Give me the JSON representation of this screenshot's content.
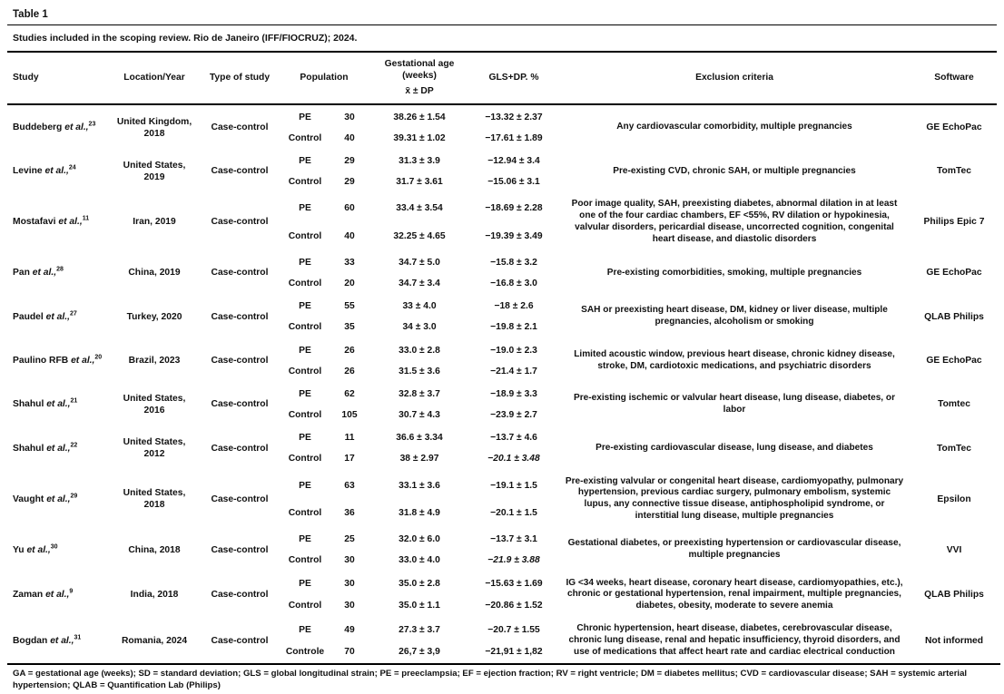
{
  "page": {
    "table_label": "Table 1",
    "subtitle": "Studies included in the scoping review. Rio de Janeiro (IFF/FIOCRUZ); 2024.",
    "footnote": "GA = gestational age (weeks); SD = standard deviation; GLS = global longitudinal strain; PE = preeclampsia; EF = ejection fraction; RV = right ventricle; DM = diabetes mellitus; CVD = cardiovascular disease; SAH = systemic arterial hypertension; QLAB = Quantification Lab (Philips)"
  },
  "table": {
    "headers": {
      "study": "Study",
      "location": "Location/Year",
      "type": "Type of study",
      "population": "Population",
      "ga_line1": "Gestational age (weeks)",
      "ga_line2": "x̄  ± DP",
      "gls": "GLS+DP. %",
      "exclusion": "Exclusion criteria",
      "software": "Software"
    },
    "rows": [
      {
        "name": "Buddeberg",
        "etal": "et al.,",
        "ref": "23",
        "location": "United Kingdom, 2018",
        "type": "Case-control",
        "groups": [
          {
            "group": "PE",
            "n": "30",
            "ga": "38.26 ± 1.54",
            "gls": "−13.32 ± 2.37"
          },
          {
            "group": "Control",
            "n": "40",
            "ga": "39.31 ± 1.02",
            "gls": "−17.61 ± 1.89"
          }
        ],
        "exclusion": "Any cardiovascular comorbidity, multiple pregnancies",
        "software": "GE EchoPac"
      },
      {
        "name": "Levine",
        "etal": "et al.,",
        "ref": "24",
        "location": "United States, 2019",
        "type": "Case-control",
        "groups": [
          {
            "group": "PE",
            "n": "29",
            "ga": "31.3 ± 3.9",
            "gls": "−12.94 ± 3.4"
          },
          {
            "group": "Control",
            "n": "29",
            "ga": "31.7 ± 3.61",
            "gls": "−15.06 ± 3.1"
          }
        ],
        "exclusion": "Pre-existing CVD, chronic SAH, or multiple pregnancies",
        "software": "TomTec"
      },
      {
        "name": "Mostafavi",
        "etal": "et al.,",
        "ref": "11",
        "location": "Iran, 2019",
        "type": "Case-control",
        "groups": [
          {
            "group": "PE",
            "n": "60",
            "ga": "33.4 ± 3.54",
            "gls": "−18.69 ± 2.28"
          },
          {
            "group": "Control",
            "n": "40",
            "ga": "32.25 ± 4.65",
            "gls": "−19.39 ± 3.49"
          }
        ],
        "exclusion": "Poor image quality, SAH, preexisting diabetes, abnormal dilation in at least one of the four cardiac chambers, EF <55%, RV dilation or hypokinesia, valvular disorders, pericardial disease, uncorrected cognition, congenital heart disease, and diastolic disorders",
        "software": "Philips Epic 7"
      },
      {
        "name": "Pan",
        "etal": "et al.,",
        "ref": "28",
        "location": "China, 2019",
        "type": "Case-control",
        "groups": [
          {
            "group": "PE",
            "n": "33",
            "ga": "34.7 ± 5.0",
            "gls": "−15.8 ± 3.2"
          },
          {
            "group": "Control",
            "n": "20",
            "ga": "34.7 ± 3.4",
            "gls": "−16.8 ± 3.0"
          }
        ],
        "exclusion": "Pre-existing comorbidities, smoking, multiple pregnancies",
        "software": "GE EchoPac"
      },
      {
        "name": "Paudel",
        "etal": "et al.,",
        "ref": "27",
        "location": "Turkey, 2020",
        "type": "Case-control",
        "groups": [
          {
            "group": "PE",
            "n": "55",
            "ga": "33 ± 4.0",
            "gls": "−18 ± 2.6"
          },
          {
            "group": "Control",
            "n": "35",
            "ga": "34 ± 3.0",
            "gls": "−19.8 ± 2.1"
          }
        ],
        "exclusion": "SAH or preexisting heart disease, DM, kidney or liver disease, multiple pregnancies, alcoholism or smoking",
        "software": "QLAB Philips"
      },
      {
        "name": "Paulino RFB",
        "etal": "et al.,",
        "ref": "20",
        "location": "Brazil, 2023",
        "type": "Case-control",
        "groups": [
          {
            "group": "PE",
            "n": "26",
            "ga": "33.0 ± 2.8",
            "gls": "−19.0 ± 2.3"
          },
          {
            "group": "Control",
            "n": "26",
            "ga": "31.5 ± 3.6",
            "gls": "−21.4 ± 1.7"
          }
        ],
        "exclusion": "Limited acoustic window, previous heart disease, chronic kidney disease, stroke, DM, cardiotoxic medications, and psychiatric disorders",
        "software": "GE EchoPac"
      },
      {
        "name": "Shahul",
        "etal": "et al.,",
        "ref": "21",
        "location": "United States, 2016",
        "type": "Case-control",
        "groups": [
          {
            "group": "PE",
            "n": "62",
            "ga": "32.8 ± 3.7",
            "gls": "−18.9 ± 3.3"
          },
          {
            "group": "Control",
            "n": "105",
            "ga": "30.7 ± 4.3",
            "gls": "−23.9 ± 2.7"
          }
        ],
        "exclusion": "Pre-existing ischemic or valvular heart disease, lung disease, diabetes, or labor",
        "software": "Tomtec"
      },
      {
        "name": "Shahul",
        "etal": "et al.,",
        "ref": "22",
        "location": "United States, 2012",
        "type": "Case-control",
        "groups": [
          {
            "group": "PE",
            "n": "11",
            "ga": "36.6 ± 3.34",
            "gls": "−13.7 ± 4.6"
          },
          {
            "group": "Control",
            "n": "17",
            "ga": "38 ± 2.97",
            "gls": "−20.1 ± 3.48",
            "gls_italic": true
          }
        ],
        "exclusion": "Pre-existing cardiovascular disease, lung disease, and diabetes",
        "software": "TomTec"
      },
      {
        "name": "Vaught",
        "etal": "et al.,",
        "ref": "29",
        "location": "United States, 2018",
        "type": "Case-control",
        "groups": [
          {
            "group": "PE",
            "n": "63",
            "ga": "33.1 ± 3.6",
            "gls": "−19.1 ± 1.5"
          },
          {
            "group": "Control",
            "n": "36",
            "ga": "31.8 ± 4.9",
            "gls": "−20.1 ± 1.5"
          }
        ],
        "exclusion": "Pre-existing valvular or congenital heart disease, cardiomyopathy, pulmonary hypertension, previous cardiac surgery, pulmonary embolism, systemic lupus, any connective tissue disease, antiphospholipid syndrome, or interstitial lung disease, multiple pregnancies",
        "software": "Epsilon"
      },
      {
        "name": "Yu",
        "etal": "et al.,",
        "ref": "30",
        "location": "China, 2018",
        "type": "Case-control",
        "groups": [
          {
            "group": "PE",
            "n": "25",
            "ga": "32.0 ± 6.0",
            "gls": "−13.7 ± 3.1"
          },
          {
            "group": "Control",
            "n": "30",
            "ga": "33.0 ± 4.0",
            "gls": "−21.9 ± 3.88",
            "gls_italic": true
          }
        ],
        "exclusion": "Gestational diabetes, or preexisting hypertension or cardiovascular disease, multiple pregnancies",
        "software": "VVI"
      },
      {
        "name": "Zaman",
        "etal": "et al.,",
        "ref": "9",
        "location": "India, 2018",
        "type": "Case-control",
        "groups": [
          {
            "group": "PE",
            "n": "30",
            "ga": "35.0 ± 2.8",
            "gls": "−15.63 ± 1.69"
          },
          {
            "group": "Control",
            "n": "30",
            "ga": "35.0 ± 1.1",
            "gls": "−20.86 ± 1.52"
          }
        ],
        "exclusion": "IG <34 weeks, heart disease, coronary heart disease, cardiomyopathies, etc.), chronic or gestational hypertension, renal impairment, multiple pregnancies, diabetes, obesity, moderate to severe anemia",
        "software": "QLAB Philips"
      },
      {
        "name": "Bogdan",
        "etal": "et al.,",
        "ref": "31",
        "location": "Romania, 2024",
        "type": "Case-control",
        "groups": [
          {
            "group": "PE",
            "n": "49",
            "ga": "27.3 ± 3.7",
            "gls": "−20.7 ± 1.55"
          },
          {
            "group": "Controle",
            "n": "70",
            "ga": "26,7 ± 3,9",
            "gls": "−21,91 ± 1,82"
          }
        ],
        "exclusion": "Chronic hypertension, heart disease, diabetes, cerebrovascular disease, chronic lung disease, renal and hepatic insufficiency, thyroid disorders, and use of medications that affect heart rate and cardiac electrical conduction",
        "software": "Not informed"
      }
    ]
  }
}
